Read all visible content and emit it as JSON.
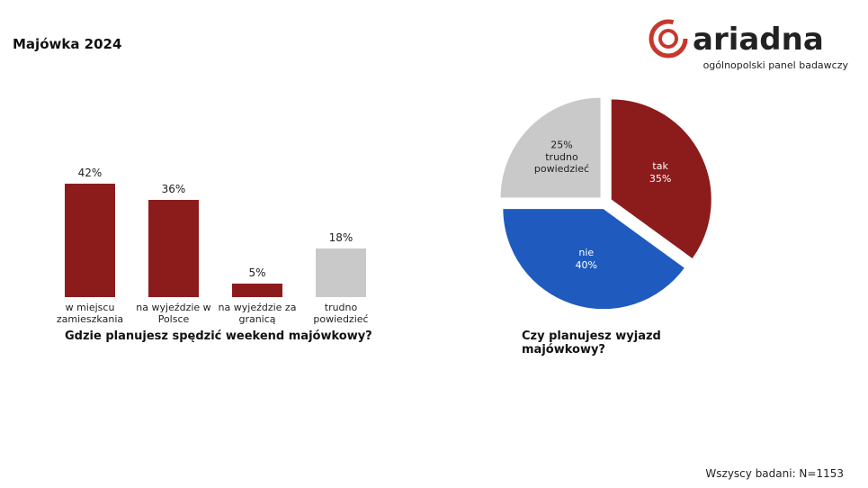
{
  "title": "Majówka 2024",
  "logo": {
    "name": "ariadna",
    "tagline": "ogólnopolski panel badawczy"
  },
  "footnote": "Wszyscy badani: N=1153",
  "chart_data": [
    {
      "type": "bar",
      "title": "Gdzie planujesz spędzić weekend majówkowy?",
      "categories": [
        "w miejscu zamieszkania",
        "na wyjeździe w Polsce",
        "na wyjeździe za granicą",
        "trudno powiedzieć"
      ],
      "values": [
        42,
        36,
        5,
        18
      ],
      "value_labels": [
        "42%",
        "36%",
        "5%",
        "18%"
      ],
      "colors": [
        "#8c1c1c",
        "#8c1c1c",
        "#8c1c1c",
        "#c9c9c9"
      ]
    },
    {
      "type": "pie",
      "title": "Czy planujesz wyjazd majówkowy?",
      "categories": [
        "tak",
        "nie",
        "trudno powiedzieć"
      ],
      "values": [
        35,
        40,
        25
      ],
      "value_labels": [
        "35%",
        "40%",
        "25%"
      ],
      "colors": [
        "#8c1c1c",
        "#1f5bbf",
        "#c9c9c9"
      ]
    }
  ]
}
